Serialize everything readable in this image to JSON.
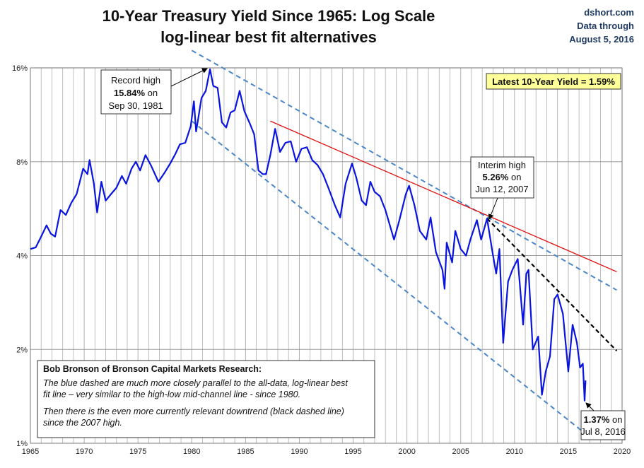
{
  "header": {
    "title_line1": "10-Year Treasury Yield Since 1965: Log Scale",
    "title_line2": "log-linear best fit alternatives",
    "source": "dshort.com",
    "data_through_label": "Data through",
    "data_through_date": "August 5, 2016"
  },
  "annotations": {
    "record_high": {
      "line1": "Record high",
      "value": "15.84%",
      "on": " on",
      "date": "Sep 30, 1981"
    },
    "interim_high": {
      "line1": "Interim high",
      "value": "5.26%",
      "on": " on",
      "date": "Jun 12, 2007"
    },
    "recent_low": {
      "value": "1.37%",
      "on": " on",
      "date": "Jul 8, 2016"
    },
    "latest_yield": "Latest 10-Year Yield = 1.59%",
    "note": {
      "heading": "Bob Bronson of Bronson Capital Markets Research:",
      "line1": "The blue dashed are much more closely parallel to the all-data, log-linear best",
      "line2": "fit line – very similar to the high-low mid-channel line - since 1980.",
      "line3": "Then there is the even more currently relevant downtrend (black dashed line)",
      "line4": "since the 2007 high."
    }
  },
  "colors": {
    "series": "#0a14e0",
    "blue_dashed": "#4a86c8",
    "red_trend": "#e01010",
    "black_dashed": "#000000",
    "grid": "#b0b0b0",
    "latest_box_bg": "#ffff99"
  },
  "chart_data": {
    "type": "line",
    "y_scale": "log",
    "xlim": [
      1965,
      2020
    ],
    "ylim": [
      1,
      16
    ],
    "x_ticks": [
      1965,
      1970,
      1975,
      1980,
      1985,
      1990,
      1995,
      2000,
      2005,
      2010,
      2015,
      2020
    ],
    "x_tick_labels": [
      "1965",
      "1970",
      "1975",
      "1980",
      "1985",
      "1990",
      "1995",
      "2000",
      "2005",
      "2010",
      "2015",
      "2020"
    ],
    "y_ticks": [
      1,
      2,
      4,
      8,
      16
    ],
    "y_tick_labels": [
      "1%",
      "2%",
      "4%",
      "8%",
      "16%"
    ],
    "grid": true,
    "series": [
      {
        "points": [
          [
            1965.0,
            4.2
          ],
          [
            1965.5,
            4.25
          ],
          [
            1966.0,
            4.6
          ],
          [
            1966.5,
            5.0
          ],
          [
            1966.9,
            4.7
          ],
          [
            1967.3,
            4.6
          ],
          [
            1967.8,
            5.6
          ],
          [
            1968.3,
            5.4
          ],
          [
            1968.8,
            5.9
          ],
          [
            1969.3,
            6.3
          ],
          [
            1969.9,
            7.6
          ],
          [
            1970.3,
            7.3
          ],
          [
            1970.5,
            8.1
          ],
          [
            1970.9,
            6.8
          ],
          [
            1971.2,
            5.5
          ],
          [
            1971.6,
            6.9
          ],
          [
            1972.0,
            6.0
          ],
          [
            1972.5,
            6.3
          ],
          [
            1973.0,
            6.6
          ],
          [
            1973.5,
            7.2
          ],
          [
            1973.9,
            6.8
          ],
          [
            1974.4,
            7.6
          ],
          [
            1974.8,
            8.0
          ],
          [
            1975.2,
            7.5
          ],
          [
            1975.7,
            8.4
          ],
          [
            1976.2,
            7.8
          ],
          [
            1976.9,
            6.9
          ],
          [
            1977.5,
            7.4
          ],
          [
            1978.0,
            7.9
          ],
          [
            1978.5,
            8.5
          ],
          [
            1978.9,
            9.1
          ],
          [
            1979.4,
            9.2
          ],
          [
            1979.9,
            10.4
          ],
          [
            1980.2,
            12.5
          ],
          [
            1980.4,
            10.0
          ],
          [
            1980.6,
            11.0
          ],
          [
            1980.9,
            12.8
          ],
          [
            1981.3,
            13.5
          ],
          [
            1981.7,
            15.84
          ],
          [
            1982.0,
            14.0
          ],
          [
            1982.4,
            13.8
          ],
          [
            1982.8,
            10.7
          ],
          [
            1983.2,
            10.3
          ],
          [
            1983.6,
            11.5
          ],
          [
            1984.0,
            11.7
          ],
          [
            1984.45,
            13.5
          ],
          [
            1984.9,
            11.6
          ],
          [
            1985.4,
            10.6
          ],
          [
            1985.8,
            9.8
          ],
          [
            1986.2,
            7.5
          ],
          [
            1986.6,
            7.3
          ],
          [
            1986.9,
            7.3
          ],
          [
            1987.3,
            8.4
          ],
          [
            1987.75,
            10.2
          ],
          [
            1988.2,
            8.6
          ],
          [
            1988.7,
            9.2
          ],
          [
            1989.2,
            9.3
          ],
          [
            1989.7,
            8.0
          ],
          [
            1990.2,
            8.8
          ],
          [
            1990.7,
            8.9
          ],
          [
            1991.2,
            8.1
          ],
          [
            1991.7,
            7.8
          ],
          [
            1992.2,
            7.3
          ],
          [
            1992.7,
            6.6
          ],
          [
            1993.3,
            5.8
          ],
          [
            1993.8,
            5.3
          ],
          [
            1994.3,
            6.8
          ],
          [
            1994.9,
            7.9
          ],
          [
            1995.3,
            7.1
          ],
          [
            1995.8,
            6.0
          ],
          [
            1996.2,
            5.8
          ],
          [
            1996.6,
            6.9
          ],
          [
            1997.0,
            6.4
          ],
          [
            1997.5,
            6.2
          ],
          [
            1998.0,
            5.6
          ],
          [
            1998.8,
            4.5
          ],
          [
            1999.3,
            5.2
          ],
          [
            1999.9,
            6.3
          ],
          [
            2000.2,
            6.7
          ],
          [
            2000.7,
            5.8
          ],
          [
            2001.2,
            4.8
          ],
          [
            2001.8,
            4.5
          ],
          [
            2002.2,
            5.3
          ],
          [
            2002.7,
            4.1
          ],
          [
            2003.3,
            3.6
          ],
          [
            2003.5,
            3.13
          ],
          [
            2003.7,
            4.4
          ],
          [
            2004.2,
            3.8
          ],
          [
            2004.5,
            4.8
          ],
          [
            2005.0,
            4.2
          ],
          [
            2005.5,
            4.0
          ],
          [
            2005.9,
            4.5
          ],
          [
            2006.5,
            5.2
          ],
          [
            2006.9,
            4.5
          ],
          [
            2007.45,
            5.26
          ],
          [
            2007.9,
            4.2
          ],
          [
            2008.3,
            3.5
          ],
          [
            2008.6,
            4.2
          ],
          [
            2008.95,
            2.1
          ],
          [
            2009.4,
            3.3
          ],
          [
            2009.8,
            3.6
          ],
          [
            2010.3,
            3.9
          ],
          [
            2010.8,
            2.4
          ],
          [
            2011.1,
            3.5
          ],
          [
            2011.3,
            3.6
          ],
          [
            2011.7,
            2.0
          ],
          [
            2012.2,
            2.2
          ],
          [
            2012.55,
            1.43
          ],
          [
            2012.9,
            1.7
          ],
          [
            2013.3,
            1.9
          ],
          [
            2013.7,
            2.9
          ],
          [
            2014.0,
            3.0
          ],
          [
            2014.5,
            2.6
          ],
          [
            2015.0,
            1.7
          ],
          [
            2015.4,
            2.4
          ],
          [
            2015.8,
            2.1
          ],
          [
            2016.1,
            1.75
          ],
          [
            2016.35,
            1.8
          ],
          [
            2016.52,
            1.37
          ],
          [
            2016.6,
            1.59
          ]
        ]
      }
    ],
    "trend_lines": [
      {
        "style": "blue dashed",
        "from": [
          1980.0,
          18.2
        ],
        "to": [
          2019.5,
          3.1
        ]
      },
      {
        "style": "blue dashed",
        "from": [
          1980.0,
          10.8
        ],
        "to": [
          2016.5,
          1.08
        ]
      },
      {
        "style": "red solid",
        "from": [
          1987.3,
          10.8
        ],
        "to": [
          2019.5,
          3.55
        ]
      },
      {
        "style": "black dashed",
        "from": [
          2007.45,
          5.26
        ],
        "to": [
          2019.5,
          1.98
        ]
      }
    ]
  }
}
